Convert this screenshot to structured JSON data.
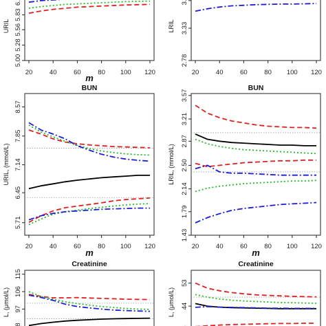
{
  "series_styles": [
    {
      "key": "black",
      "color": "#000000",
      "dash": ""
    },
    {
      "key": "red",
      "color": "#e02020",
      "dash": "7,4"
    },
    {
      "key": "green",
      "color": "#22bb22",
      "dash": "2,3"
    },
    {
      "key": "blue",
      "color": "#1c1cd8",
      "dash": "8,3,2,3"
    }
  ],
  "chart_data": [
    {
      "type": "line",
      "title": "",
      "xlabel": "m",
      "ylabel": "URIL",
      "x": [
        20,
        30,
        40,
        50,
        60,
        70,
        80,
        90,
        100,
        110,
        120
      ],
      "xticks": [
        "20",
        "40",
        "60",
        "80",
        "100",
        "120"
      ],
      "yticks": [
        "5.00",
        "5.28",
        "5.56",
        "5.83",
        "6.11"
      ],
      "ylim": [
        5.0,
        6.25
      ],
      "ref_lines": [
        6.2
      ],
      "series": [
        {
          "style": "black",
          "values": [
            6.12,
            6.14,
            6.15,
            6.16,
            6.165,
            6.17,
            6.175,
            6.18,
            6.18,
            6.185,
            6.185
          ]
        },
        {
          "style": "blue",
          "values": [
            6.06,
            6.09,
            6.1,
            6.115,
            6.12,
            6.13,
            6.135,
            6.14,
            6.145,
            6.15,
            6.15
          ]
        },
        {
          "style": "green",
          "values": [
            5.95,
            5.98,
            6.0,
            6.02,
            6.03,
            6.04,
            6.05,
            6.06,
            6.07,
            6.075,
            6.08
          ]
        },
        {
          "style": "red",
          "values": [
            5.86,
            5.9,
            5.93,
            5.95,
            5.97,
            5.98,
            5.99,
            6.0,
            6.01,
            6.015,
            6.02
          ]
        }
      ]
    },
    {
      "type": "line",
      "title": "",
      "xlabel": "",
      "ylabel": "LRIL",
      "x": [
        20,
        30,
        40,
        50,
        60,
        70,
        80,
        90,
        100,
        110,
        120
      ],
      "xticks": [
        "20",
        "40",
        "60",
        "80",
        "100",
        "120"
      ],
      "yticks": [
        "2.78",
        "3.33",
        "3.8"
      ],
      "ylim": [
        2.78,
        3.95
      ],
      "ref_lines": [
        3.88
      ],
      "series": [
        {
          "style": "green",
          "values": [
            3.88,
            3.905,
            3.915,
            3.925,
            3.93,
            3.935,
            3.94,
            3.94,
            3.945,
            3.945,
            3.95
          ]
        },
        {
          "style": "blue",
          "values": [
            3.62,
            3.66,
            3.69,
            3.71,
            3.72,
            3.73,
            3.735,
            3.74,
            3.74,
            3.745,
            3.75
          ]
        }
      ]
    },
    {
      "type": "line",
      "title": "BUN",
      "xlabel": "m",
      "ylabel": "URIL, (mmol/L)",
      "x": [
        20,
        30,
        40,
        50,
        60,
        70,
        80,
        90,
        100,
        110,
        120
      ],
      "xticks": [
        "20",
        "40",
        "60",
        "80",
        "100",
        "120"
      ],
      "yticks": [
        "5.71",
        "6.45",
        "7.14",
        "7.85",
        "8.57"
      ],
      "ylim": [
        5.4,
        8.9
      ],
      "ref_lines": [
        7.55,
        6.33
      ],
      "series": [
        {
          "style": "black",
          "values": [
            6.55,
            6.62,
            6.67,
            6.72,
            6.76,
            6.79,
            6.82,
            6.84,
            6.86,
            6.88,
            6.88
          ]
        },
        {
          "style": "red",
          "values": [
            8.0,
            7.9,
            7.78,
            7.7,
            7.66,
            7.63,
            7.61,
            7.59,
            7.58,
            7.57,
            7.56
          ]
        },
        {
          "style": "green",
          "values": [
            8.12,
            7.95,
            7.83,
            7.72,
            7.62,
            7.54,
            7.48,
            7.44,
            7.41,
            7.39,
            7.38
          ]
        },
        {
          "style": "blue",
          "values": [
            8.18,
            8.0,
            7.9,
            7.78,
            7.61,
            7.5,
            7.4,
            7.33,
            7.28,
            7.25,
            7.23
          ]
        },
        {
          "style": "red",
          "values": [
            5.72,
            5.88,
            6.0,
            6.08,
            6.12,
            6.16,
            6.2,
            6.25,
            6.28,
            6.3,
            6.32
          ]
        },
        {
          "style": "green",
          "values": [
            5.66,
            5.8,
            5.92,
            5.98,
            6.02,
            6.06,
            6.09,
            6.12,
            6.15,
            6.17,
            6.18
          ]
        },
        {
          "style": "blue",
          "values": [
            5.78,
            5.88,
            5.94,
            5.98,
            6.0,
            6.02,
            6.04,
            6.05,
            6.06,
            6.07,
            6.07
          ]
        }
      ]
    },
    {
      "type": "line",
      "title": "BUN",
      "xlabel": "m",
      "ylabel": "LRIL, (mmol/L)",
      "x": [
        20,
        30,
        40,
        50,
        60,
        70,
        80,
        90,
        100,
        110,
        120
      ],
      "xticks": [
        "20",
        "40",
        "60",
        "80",
        "100",
        "120"
      ],
      "yticks": [
        "1.43",
        "1.79",
        "2.14",
        "2.50",
        "2.87",
        "3.21",
        "3.57"
      ],
      "ylim": [
        1.43,
        3.6
      ],
      "ref_lines": [
        3.0,
        2.4
      ],
      "series": [
        {
          "style": "red",
          "values": [
            3.42,
            3.3,
            3.23,
            3.18,
            3.15,
            3.12,
            3.1,
            3.09,
            3.08,
            3.08,
            3.07
          ]
        },
        {
          "style": "black",
          "values": [
            2.98,
            2.9,
            2.87,
            2.85,
            2.84,
            2.83,
            2.82,
            2.81,
            2.81,
            2.8,
            2.8
          ]
        },
        {
          "style": "green",
          "values": [
            2.9,
            2.83,
            2.79,
            2.76,
            2.74,
            2.73,
            2.72,
            2.71,
            2.7,
            2.69,
            2.68
          ]
        },
        {
          "style": "red",
          "values": [
            2.53,
            2.48,
            2.5,
            2.52,
            2.54,
            2.55,
            2.56,
            2.57,
            2.57,
            2.58,
            2.58
          ]
        },
        {
          "style": "blue",
          "values": [
            2.45,
            2.5,
            2.4,
            2.38,
            2.38,
            2.37,
            2.36,
            2.35,
            2.35,
            2.35,
            2.35
          ]
        },
        {
          "style": "green",
          "values": [
            2.1,
            2.15,
            2.18,
            2.2,
            2.22,
            2.23,
            2.24,
            2.25,
            2.26,
            2.26,
            2.27
          ]
        },
        {
          "style": "blue",
          "values": [
            1.62,
            1.7,
            1.76,
            1.81,
            1.84,
            1.86,
            1.88,
            1.9,
            1.91,
            1.92,
            1.93
          ]
        }
      ]
    },
    {
      "type": "line",
      "title": "Creatinine",
      "xlabel": "",
      "ylabel": "L, (μmol/L)",
      "x": [
        20,
        30,
        40,
        50,
        60,
        70,
        80,
        90,
        100,
        110,
        120
      ],
      "xticks": [],
      "yticks": [
        "88",
        "97",
        "106",
        "115"
      ],
      "ylim": [
        84,
        117
      ],
      "ref_lines": [
        100,
        92
      ],
      "series": [
        {
          "style": "black",
          "values": [
            88.5,
            89.5,
            90.2,
            90.8,
            91.2,
            91.5,
            91.8,
            92.0,
            92.1,
            92.2,
            92.3
          ]
        },
        {
          "style": "red",
          "values": [
            104.5,
            103.5,
            102.8,
            102.8,
            102.9,
            102.7,
            102.5,
            102.3,
            102.1,
            102.0,
            101.9
          ]
        },
        {
          "style": "green",
          "values": [
            106.0,
            103.5,
            102.0,
            100.8,
            99.8,
            99.0,
            98.3,
            97.8,
            97.3,
            97.0,
            96.8
          ]
        },
        {
          "style": "blue",
          "values": [
            104.2,
            103.0,
            101.5,
            99.5,
            98.3,
            97.6,
            97.0,
            96.5,
            96.2,
            96.0,
            95.8
          ]
        }
      ]
    },
    {
      "type": "line",
      "title": "Creatinine",
      "xlabel": "",
      "ylabel": "L, (μmol/L)",
      "x": [
        20,
        30,
        40,
        50,
        60,
        70,
        80,
        90,
        100,
        110,
        120
      ],
      "xticks": [],
      "yticks": [
        "35",
        "44",
        "53"
      ],
      "ylim": [
        33,
        58
      ],
      "ref_lines": [
        47.5,
        35.5
      ],
      "series": [
        {
          "style": "red",
          "values": [
            53.0,
            51.0,
            50.0,
            49.3,
            48.8,
            48.4,
            48.2,
            48.0,
            47.8,
            47.7,
            47.6
          ]
        },
        {
          "style": "green",
          "values": [
            48.5,
            47.5,
            46.8,
            46.3,
            46.0,
            45.8,
            45.6,
            45.4,
            45.3,
            45.2,
            45.1
          ]
        },
        {
          "style": "black",
          "values": [
            45.0,
            44.0,
            43.6,
            43.4,
            43.3,
            43.2,
            43.1,
            43.0,
            43.0,
            43.0,
            43.0
          ]
        },
        {
          "style": "blue",
          "values": [
            43.5,
            43.8,
            43.6,
            43.5,
            43.4,
            43.3,
            43.2,
            43.2,
            43.1,
            43.1,
            43.1
          ]
        },
        {
          "style": "red",
          "values": [
            36.0,
            36.3,
            36.6,
            36.8,
            36.9,
            37.0,
            37.1,
            37.2,
            37.2,
            37.3,
            37.3
          ]
        }
      ]
    }
  ]
}
